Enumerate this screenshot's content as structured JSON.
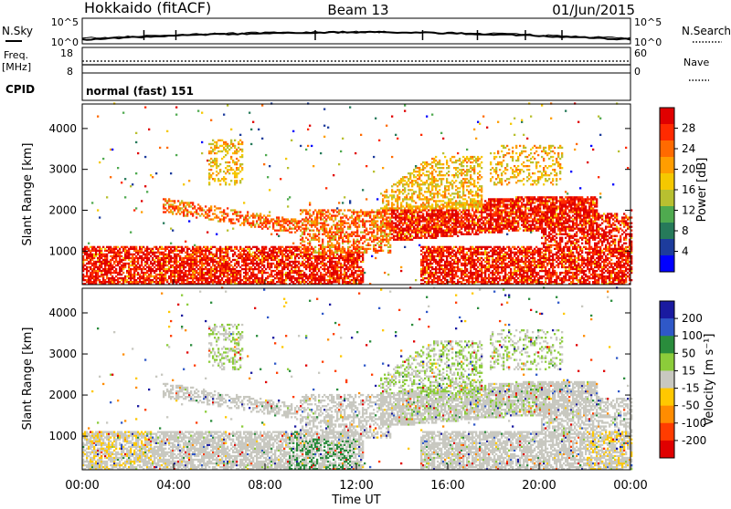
{
  "header": {
    "station": "Hokkaido (fitACF)",
    "beam": "Beam 13",
    "date": "01/Jun/2015"
  },
  "top_panels": {
    "nsky_label": "N.Sky",
    "nsky_ticks": [
      "10^5",
      "10^0"
    ],
    "nsearch_label": "N.Search",
    "nsearch_ticks": [
      "10^5",
      "10^0"
    ],
    "freq_label": "Freq.",
    "freq_unit": "[MHz]",
    "freq_ticks": [
      "18",
      "8"
    ],
    "nave_label": "Nave",
    "nave_ticks": [
      "60",
      "0"
    ],
    "cpid_label": "CPID",
    "cpid_text": "normal (fast) 151"
  },
  "chart_data": [
    {
      "type": "heatmap",
      "title": "",
      "ylabel": "Slant Range [km]",
      "xlabel": "",
      "y_ticks": [
        "1000",
        "2000",
        "3000",
        "4000"
      ],
      "ylim": [
        180,
        4600
      ],
      "xlim_hours": [
        0,
        24
      ],
      "colorbar_label": "Power [dB]",
      "colorbar_ticks": [
        "28",
        "24",
        "20",
        "16",
        "12",
        "8",
        "4"
      ],
      "colorbar_colors": [
        "#e00000",
        "#ff2a00",
        "#ff6a00",
        "#ff9d00",
        "#f5c800",
        "#b8c030",
        "#4faa4f",
        "#267a5a",
        "#1d3c9c",
        "#0000ff"
      ]
    },
    {
      "type": "heatmap",
      "title": "",
      "ylabel": "Slant Range [km]",
      "xlabel": "Time UT",
      "y_ticks": [
        "1000",
        "2000",
        "3000",
        "4000"
      ],
      "ylim": [
        180,
        4600
      ],
      "x_ticks": [
        "00:00",
        "04:00",
        "08:00",
        "12:00",
        "16:00",
        "20:00",
        "00:00"
      ],
      "xlim_hours": [
        0,
        24
      ],
      "colorbar_label": "Velocity [m s⁻¹]",
      "colorbar_ticks": [
        "200",
        "100",
        "50",
        "15",
        "-15",
        "-50",
        "-100",
        "-200"
      ],
      "colorbar_colors": [
        "#1a1aa0",
        "#2f58c8",
        "#2a8c3c",
        "#8ccc3a",
        "#c8c8c0",
        "#ffc800",
        "#ff8c00",
        "#ff3c00",
        "#e00000"
      ]
    }
  ]
}
